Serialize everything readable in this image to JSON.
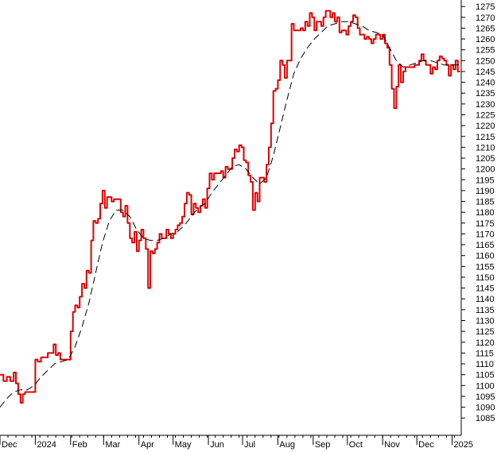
{
  "chart_data": {
    "type": "line",
    "title": "",
    "xlabel": "",
    "ylabel": "",
    "ylim": [
      1077,
      1278
    ],
    "y_ticks": [
      1085,
      1090,
      1095,
      1100,
      1105,
      1110,
      1115,
      1120,
      1125,
      1130,
      1135,
      1140,
      1145,
      1150,
      1155,
      1160,
      1165,
      1170,
      1175,
      1180,
      1185,
      1190,
      1195,
      1200,
      1205,
      1210,
      1215,
      1220,
      1225,
      1230,
      1235,
      1240,
      1245,
      1250,
      1255,
      1260,
      1265,
      1270,
      1275
    ],
    "x_ticks": [
      {
        "label": "Dec",
        "t": 0
      },
      {
        "label": "2024",
        "t": 31
      },
      {
        "label": "Feb",
        "t": 62
      },
      {
        "label": "Mar",
        "t": 91
      },
      {
        "label": "Apr",
        "t": 122
      },
      {
        "label": "May",
        "t": 152
      },
      {
        "label": "Jun",
        "t": 183
      },
      {
        "label": "Jul",
        "t": 213
      },
      {
        "label": "Aug",
        "t": 244
      },
      {
        "label": "Sep",
        "t": 275
      },
      {
        "label": "Oct",
        "t": 305
      },
      {
        "label": "Nov",
        "t": 336
      },
      {
        "label": "Dec",
        "t": 366
      },
      {
        "label": "2025",
        "t": 397
      }
    ],
    "x_range": [
      0,
      405
    ],
    "colors": {
      "price": "#dd0000",
      "average": "#000000",
      "axis": "#000000",
      "background": "#ffffff"
    },
    "series": [
      {
        "role": "price",
        "points": [
          [
            0,
            1105
          ],
          [
            3,
            1102
          ],
          [
            6,
            1104
          ],
          [
            9,
            1102
          ],
          [
            12,
            1106
          ],
          [
            14,
            1101
          ],
          [
            16,
            1096
          ],
          [
            18,
            1092
          ],
          [
            20,
            1096
          ],
          [
            22,
            1097
          ],
          [
            25,
            1097
          ],
          [
            28,
            1097
          ],
          [
            30,
            1097
          ],
          [
            31,
            1112
          ],
          [
            33,
            1111
          ],
          [
            36,
            1113
          ],
          [
            39,
            1113
          ],
          [
            42,
            1115
          ],
          [
            45,
            1115
          ],
          [
            47,
            1119
          ],
          [
            49,
            1114
          ],
          [
            51,
            1115
          ],
          [
            53,
            1112
          ],
          [
            55,
            1112
          ],
          [
            57,
            1112
          ],
          [
            59,
            1112
          ],
          [
            62,
            1125
          ],
          [
            64,
            1134
          ],
          [
            66,
            1137
          ],
          [
            68,
            1136
          ],
          [
            70,
            1141
          ],
          [
            72,
            1147
          ],
          [
            74,
            1145
          ],
          [
            76,
            1153
          ],
          [
            78,
            1152
          ],
          [
            80,
            1167
          ],
          [
            82,
            1176
          ],
          [
            84,
            1175
          ],
          [
            86,
            1177
          ],
          [
            88,
            1184
          ],
          [
            90,
            1190
          ],
          [
            92,
            1182
          ],
          [
            94,
            1187
          ],
          [
            96,
            1187
          ],
          [
            98,
            1185
          ],
          [
            100,
            1186
          ],
          [
            102,
            1186
          ],
          [
            104,
            1186
          ],
          [
            106,
            1180
          ],
          [
            108,
            1178
          ],
          [
            110,
            1183
          ],
          [
            112,
            1175
          ],
          [
            114,
            1168
          ],
          [
            116,
            1166
          ],
          [
            118,
            1171
          ],
          [
            120,
            1162
          ],
          [
            122,
            1167
          ],
          [
            124,
            1172
          ],
          [
            126,
            1168
          ],
          [
            128,
            1163
          ],
          [
            130,
            1145
          ],
          [
            132,
            1162
          ],
          [
            134,
            1161
          ],
          [
            136,
            1163
          ],
          [
            138,
            1166
          ],
          [
            140,
            1170
          ],
          [
            142,
            1168
          ],
          [
            144,
            1168
          ],
          [
            146,
            1172
          ],
          [
            148,
            1170
          ],
          [
            150,
            1168
          ],
          [
            152,
            1170
          ],
          [
            154,
            1172
          ],
          [
            156,
            1174
          ],
          [
            158,
            1175
          ],
          [
            160,
            1178
          ],
          [
            162,
            1184
          ],
          [
            164,
            1189
          ],
          [
            166,
            1188
          ],
          [
            168,
            1179
          ],
          [
            170,
            1184
          ],
          [
            172,
            1182
          ],
          [
            174,
            1180
          ],
          [
            176,
            1183
          ],
          [
            178,
            1186
          ],
          [
            180,
            1182
          ],
          [
            182,
            1191
          ],
          [
            184,
            1198
          ],
          [
            186,
            1195
          ],
          [
            188,
            1198
          ],
          [
            190,
            1198
          ],
          [
            192,
            1198
          ],
          [
            194,
            1199
          ],
          [
            196,
            1196
          ],
          [
            198,
            1201
          ],
          [
            200,
            1200
          ],
          [
            202,
            1200
          ],
          [
            204,
            1205
          ],
          [
            206,
            1209
          ],
          [
            208,
            1208
          ],
          [
            210,
            1211
          ],
          [
            212,
            1210
          ],
          [
            214,
            1204
          ],
          [
            216,
            1203
          ],
          [
            218,
            1197
          ],
          [
            220,
            1194
          ],
          [
            222,
            1181
          ],
          [
            224,
            1189
          ],
          [
            226,
            1185
          ],
          [
            228,
            1196
          ],
          [
            230,
            1196
          ],
          [
            232,
            1194
          ],
          [
            234,
            1202
          ],
          [
            236,
            1210
          ],
          [
            238,
            1221
          ],
          [
            240,
            1236
          ],
          [
            242,
            1237
          ],
          [
            244,
            1241
          ],
          [
            246,
            1250
          ],
          [
            248,
            1248
          ],
          [
            250,
            1242
          ],
          [
            252,
            1250
          ],
          [
            254,
            1250
          ],
          [
            256,
            1267
          ],
          [
            258,
            1264
          ],
          [
            260,
            1264
          ],
          [
            262,
            1264
          ],
          [
            264,
            1265
          ],
          [
            266,
            1264
          ],
          [
            268,
            1268
          ],
          [
            270,
            1266
          ],
          [
            272,
            1272
          ],
          [
            274,
            1270
          ],
          [
            276,
            1264
          ],
          [
            278,
            1268
          ],
          [
            280,
            1268
          ],
          [
            282,
            1266
          ],
          [
            284,
            1270
          ],
          [
            286,
            1273
          ],
          [
            288,
            1273
          ],
          [
            290,
            1270
          ],
          [
            292,
            1272
          ],
          [
            294,
            1268
          ],
          [
            296,
            1270
          ],
          [
            298,
            1263
          ],
          [
            300,
            1264
          ],
          [
            302,
            1264
          ],
          [
            304,
            1262
          ],
          [
            306,
            1266
          ],
          [
            308,
            1268
          ],
          [
            310,
            1271
          ],
          [
            312,
            1270
          ],
          [
            314,
            1265
          ],
          [
            316,
            1262
          ],
          [
            318,
            1262
          ],
          [
            320,
            1260
          ],
          [
            322,
            1261
          ],
          [
            324,
            1260
          ],
          [
            326,
            1258
          ],
          [
            328,
            1260
          ],
          [
            330,
            1262
          ],
          [
            332,
            1262
          ],
          [
            334,
            1260
          ],
          [
            336,
            1262
          ],
          [
            338,
            1258
          ],
          [
            340,
            1256
          ],
          [
            342,
            1248
          ],
          [
            344,
            1237
          ],
          [
            346,
            1228
          ],
          [
            348,
            1238
          ],
          [
            350,
            1248
          ],
          [
            352,
            1240
          ],
          [
            354,
            1245
          ],
          [
            356,
            1247
          ],
          [
            358,
            1247
          ],
          [
            360,
            1247
          ],
          [
            362,
            1247
          ],
          [
            364,
            1248
          ],
          [
            366,
            1248
          ],
          [
            368,
            1250
          ],
          [
            370,
            1253
          ],
          [
            372,
            1250
          ],
          [
            374,
            1248
          ],
          [
            376,
            1248
          ],
          [
            378,
            1244
          ],
          [
            380,
            1247
          ],
          [
            382,
            1246
          ],
          [
            384,
            1250
          ],
          [
            386,
            1252
          ],
          [
            388,
            1251
          ],
          [
            390,
            1250
          ],
          [
            392,
            1248
          ],
          [
            394,
            1243
          ],
          [
            396,
            1248
          ],
          [
            398,
            1246
          ],
          [
            400,
            1250
          ],
          [
            402,
            1245
          ],
          [
            404,
            1245
          ]
        ]
      },
      {
        "role": "average",
        "points": [
          [
            0,
            1090
          ],
          [
            6,
            1094
          ],
          [
            12,
            1097
          ],
          [
            18,
            1098
          ],
          [
            24,
            1098
          ],
          [
            30,
            1100
          ],
          [
            36,
            1104
          ],
          [
            42,
            1107
          ],
          [
            48,
            1110
          ],
          [
            54,
            1111
          ],
          [
            60,
            1112
          ],
          [
            66,
            1118
          ],
          [
            72,
            1127
          ],
          [
            78,
            1138
          ],
          [
            84,
            1152
          ],
          [
            90,
            1166
          ],
          [
            96,
            1176
          ],
          [
            102,
            1181
          ],
          [
            108,
            1181
          ],
          [
            114,
            1178
          ],
          [
            120,
            1172
          ],
          [
            126,
            1168
          ],
          [
            132,
            1167
          ],
          [
            138,
            1167
          ],
          [
            144,
            1168
          ],
          [
            150,
            1170
          ],
          [
            156,
            1171
          ],
          [
            162,
            1174
          ],
          [
            168,
            1178
          ],
          [
            174,
            1182
          ],
          [
            180,
            1184
          ],
          [
            186,
            1189
          ],
          [
            192,
            1193
          ],
          [
            198,
            1197
          ],
          [
            204,
            1201
          ],
          [
            210,
            1202
          ],
          [
            216,
            1200
          ],
          [
            222,
            1196
          ],
          [
            228,
            1193
          ],
          [
            234,
            1196
          ],
          [
            240,
            1206
          ],
          [
            246,
            1219
          ],
          [
            252,
            1232
          ],
          [
            258,
            1244
          ],
          [
            264,
            1251
          ],
          [
            270,
            1256
          ],
          [
            276,
            1260
          ],
          [
            282,
            1263
          ],
          [
            288,
            1266
          ],
          [
            294,
            1267
          ],
          [
            300,
            1268
          ],
          [
            306,
            1268
          ],
          [
            312,
            1267
          ],
          [
            318,
            1266
          ],
          [
            324,
            1264
          ],
          [
            330,
            1263
          ],
          [
            336,
            1262
          ],
          [
            342,
            1256
          ],
          [
            348,
            1250
          ],
          [
            354,
            1247
          ],
          [
            360,
            1248
          ],
          [
            366,
            1249
          ],
          [
            372,
            1250
          ],
          [
            378,
            1250
          ],
          [
            384,
            1249
          ],
          [
            390,
            1248
          ],
          [
            396,
            1248
          ],
          [
            402,
            1248
          ],
          [
            404,
            1248
          ]
        ]
      }
    ]
  }
}
